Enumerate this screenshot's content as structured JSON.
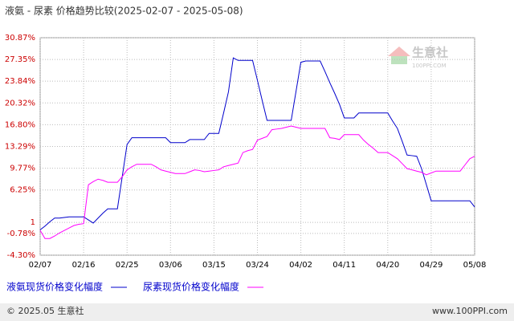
{
  "chart_data": {
    "type": "line",
    "title": "液氨 - 尿素 价格趋势比较(2025-02-07 - 2025-05-08)",
    "categories": [
      "02/07",
      null,
      null,
      null,
      null,
      null,
      null,
      null,
      null,
      "02/16",
      null,
      null,
      null,
      null,
      null,
      null,
      null,
      null,
      "02/25",
      null,
      null,
      null,
      null,
      null,
      null,
      null,
      null,
      "03/06",
      null,
      null,
      null,
      null,
      null,
      null,
      null,
      null,
      "03/15",
      null,
      null,
      null,
      null,
      null,
      null,
      null,
      null,
      "03/24",
      null,
      null,
      null,
      null,
      null,
      null,
      null,
      null,
      "04/02",
      null,
      null,
      null,
      null,
      null,
      null,
      null,
      null,
      "04/11",
      null,
      null,
      null,
      null,
      null,
      null,
      null,
      null,
      "04/20",
      null,
      null,
      null,
      null,
      null,
      null,
      null,
      null,
      "04/29",
      null,
      null,
      null,
      null,
      null,
      null,
      null,
      null,
      "05/08"
    ],
    "series": [
      {
        "name": "液氨现货价格变化幅度",
        "color": "#0000cc",
        "values": [
          -0.2,
          0.4,
          1.1,
          1.7,
          1.7,
          1.8,
          1.9,
          1.9,
          1.9,
          1.9,
          1.4,
          0.9,
          1.7,
          2.5,
          3.2,
          3.2,
          3.2,
          8.4,
          13.6,
          14.7,
          14.7,
          14.7,
          14.7,
          14.7,
          14.7,
          14.7,
          14.7,
          13.9,
          13.9,
          13.9,
          13.9,
          14.4,
          14.4,
          14.4,
          14.4,
          15.4,
          15.4,
          15.4,
          18.7,
          22.1,
          27.6,
          27.2,
          27.2,
          27.2,
          27.2,
          24.0,
          20.7,
          17.5,
          17.5,
          17.5,
          17.5,
          17.5,
          17.5,
          22.2,
          26.9,
          27.1,
          27.1,
          27.1,
          27.1,
          25.4,
          23.6,
          21.9,
          20.1,
          17.9,
          17.9,
          17.9,
          18.7,
          18.7,
          18.7,
          18.7,
          18.7,
          18.7,
          18.7,
          17.4,
          16.2,
          14.1,
          11.9,
          11.8,
          11.7,
          9.7,
          7.1,
          4.5,
          4.5,
          4.5,
          4.5,
          4.5,
          4.5,
          4.5,
          4.5,
          4.5,
          3.5
        ]
      },
      {
        "name": "尿素现货价格变化幅度",
        "color": "#ff00ff",
        "values": [
          -0.3,
          -1.6,
          -1.6,
          -1.2,
          -0.7,
          -0.3,
          0.1,
          0.5,
          0.7,
          0.8,
          7.1,
          7.6,
          8.0,
          7.8,
          7.5,
          7.5,
          7.5,
          8.4,
          9.5,
          10.0,
          10.4,
          10.4,
          10.4,
          10.4,
          10.0,
          9.5,
          9.3,
          9.1,
          8.9,
          8.9,
          8.9,
          9.2,
          9.5,
          9.4,
          9.2,
          9.3,
          9.4,
          9.5,
          10.0,
          10.2,
          10.4,
          10.6,
          12.3,
          12.6,
          12.8,
          14.3,
          14.6,
          14.9,
          16.0,
          16.1,
          16.2,
          16.4,
          16.6,
          16.4,
          16.2,
          16.2,
          16.2,
          16.2,
          16.2,
          16.2,
          14.7,
          14.6,
          14.4,
          15.2,
          15.2,
          15.2,
          15.2,
          14.3,
          13.6,
          13.0,
          12.3,
          12.3,
          12.3,
          11.8,
          11.3,
          10.5,
          9.7,
          9.5,
          9.3,
          9.1,
          8.7,
          9.0,
          9.3,
          9.3,
          9.3,
          9.3,
          9.3,
          9.3,
          10.3,
          11.3,
          11.7
        ]
      }
    ],
    "ylim": [
      -4.3,
      30.87
    ],
    "yticks": [
      {
        "value": 30.87,
        "label": "30.87%"
      },
      {
        "value": 27.35,
        "label": "27.35%"
      },
      {
        "value": 23.84,
        "label": "23.84%"
      },
      {
        "value": 20.32,
        "label": "20.32%"
      },
      {
        "value": 16.8,
        "label": "16.80%"
      },
      {
        "value": 13.29,
        "label": "13.29%"
      },
      {
        "value": 9.77,
        "label": "9.77%"
      },
      {
        "value": 6.25,
        "label": "6.25%"
      },
      1,
      {
        "value": -0.78,
        "label": "-0.78%"
      },
      {
        "value": -4.3,
        "label": "-4.30%"
      }
    ],
    "grid": true,
    "legend": "bottom",
    "watermark": {
      "name": "生意社",
      "site": "100PPI.COM"
    }
  },
  "footer": {
    "left": "© 2025.05 生意社",
    "right": "www.100PPI.com"
  }
}
